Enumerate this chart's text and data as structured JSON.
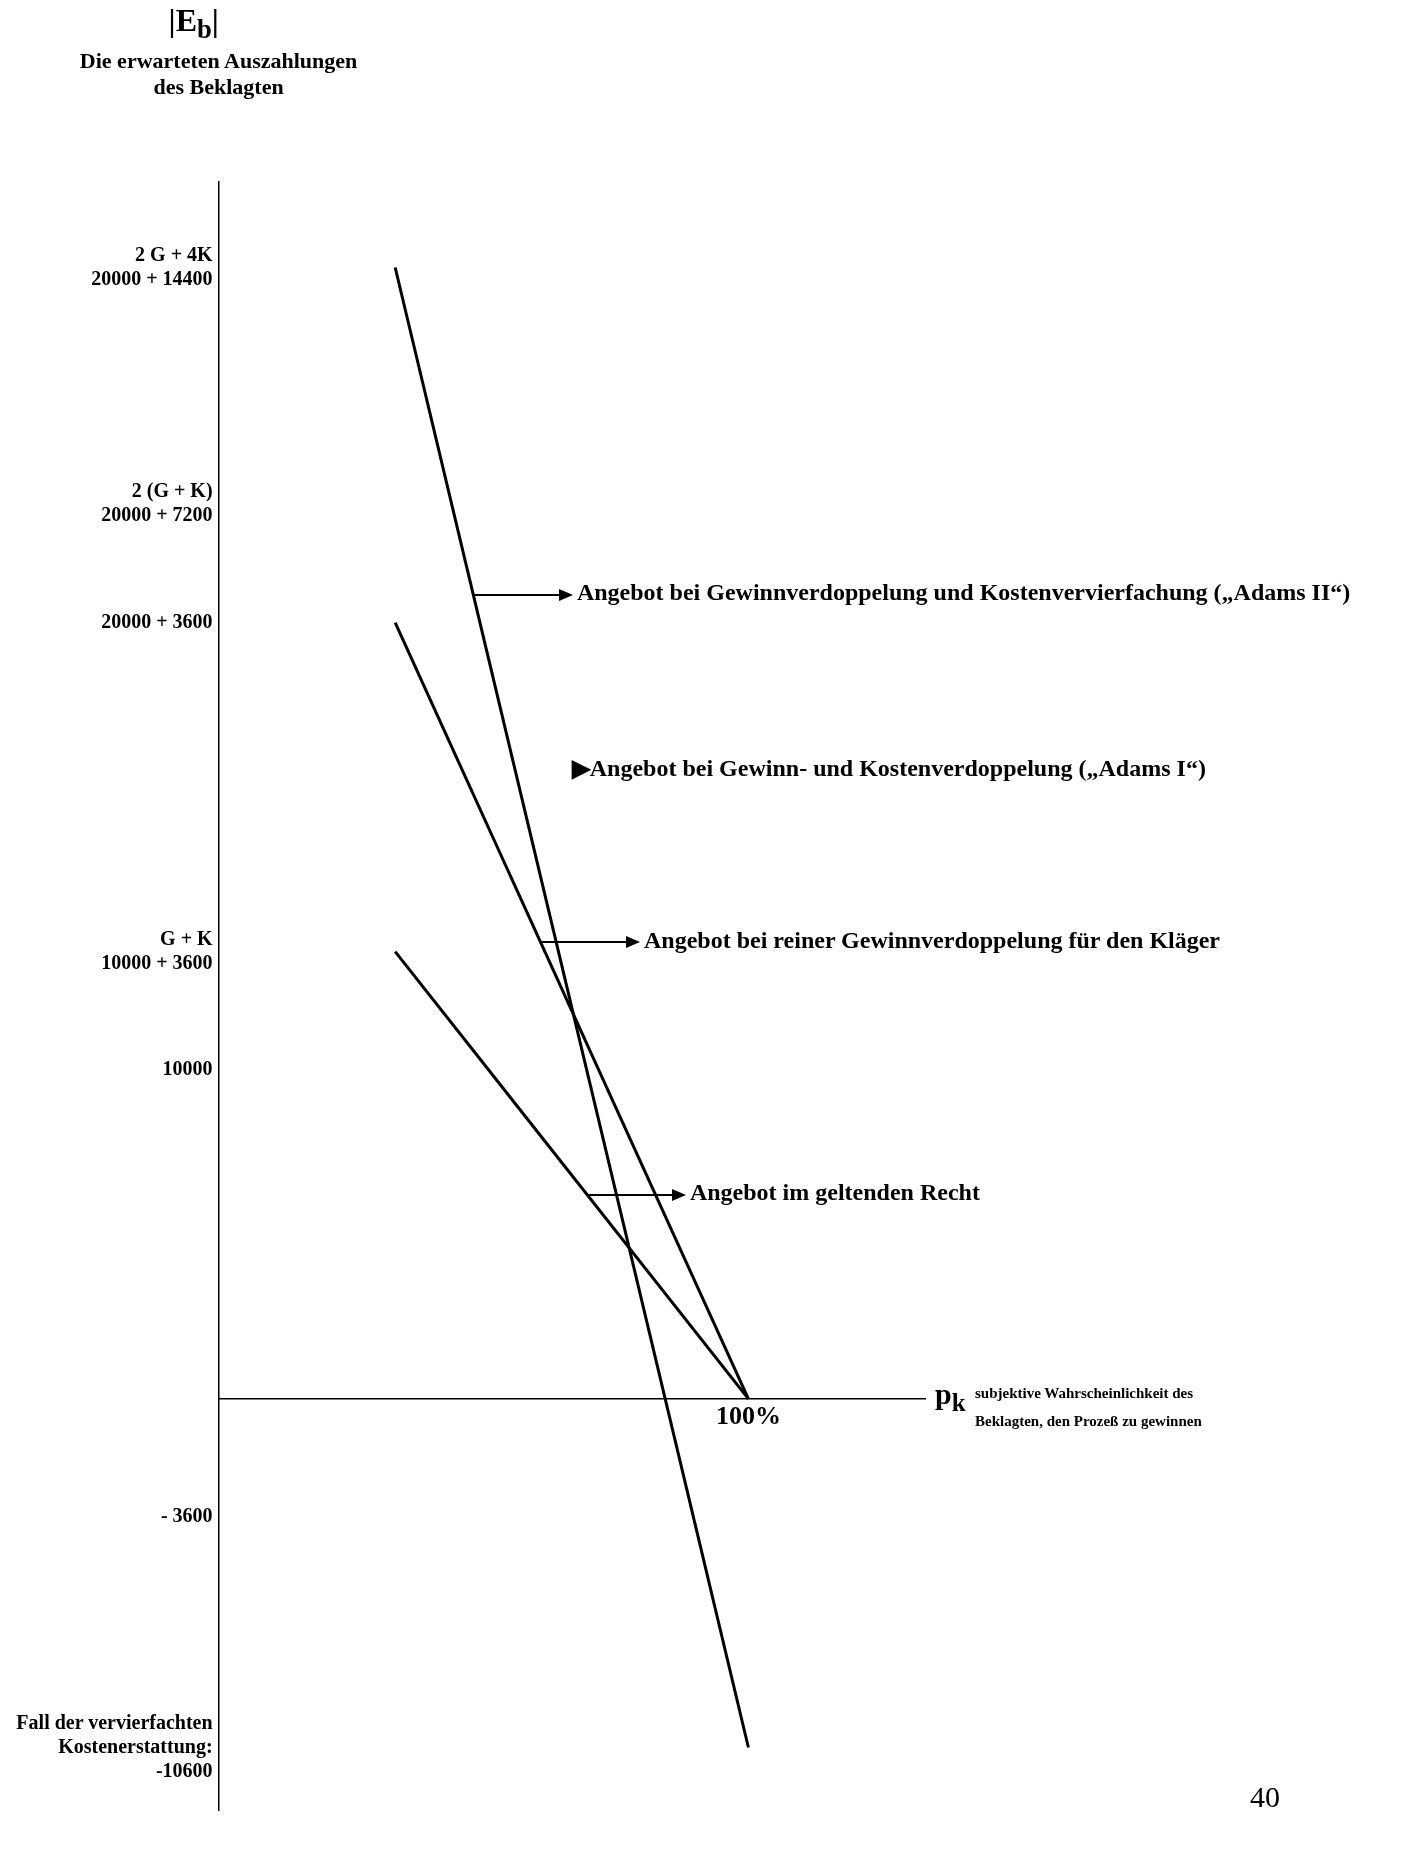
{
  "chart_data": {
    "type": "line",
    "title": "|E$_{b}$|",
    "ylabel": "Die erwarteten Auszahlungen des Beklagten",
    "xlabel": "p$_{k}$",
    "categories": [
      null,
      "100%"
    ],
    "series": [
      {
        "color": "#000000",
        "values": [
          34400,
          -10600
        ]
      },
      {
        "color": "#000000",
        "values": [
          23600,
          0
        ]
      },
      {
        "color": "#000000",
        "values": [
          13600,
          0
        ]
      }
    ],
    "ylim": [
      -12500,
      37000
    ],
    "yticks": [
      {
        "value": 34400,
        "label": "2 G + 4K\n20000 + 14400"
      },
      {
        "value": 27200,
        "label": "2 (G + K)\n20000 + 7200"
      },
      {
        "value": 23600,
        "label": "20000 + 3600"
      },
      {
        "value": 13600,
        "label": "G + K\n10000 + 3600"
      },
      {
        "value": 10000,
        "label": "10000"
      },
      {
        "value": -3600,
        "label": "- 3600"
      },
      {
        "value": -10600,
        "label": "Fall der vervierfachten\nKostenerstattung:\n-10600"
      }
    ],
    "legend": false,
    "annotations": [
      "Angebot bei Gewinnverdoppelung und Kostenvervierfachung („Adams II“)",
      "Angebot bei reiner Gewinnverdoppelung für den Kläger",
      "Angebot im geltenden Recht",
      "subjektive Wahrscheinlichkeit des Beklagten, den Prozeß zu gewinnen",
      "▶Angebot bei Gewinn- und Kostenverdoppelung („Adams I“)",
      "40"
    ]
  }
}
